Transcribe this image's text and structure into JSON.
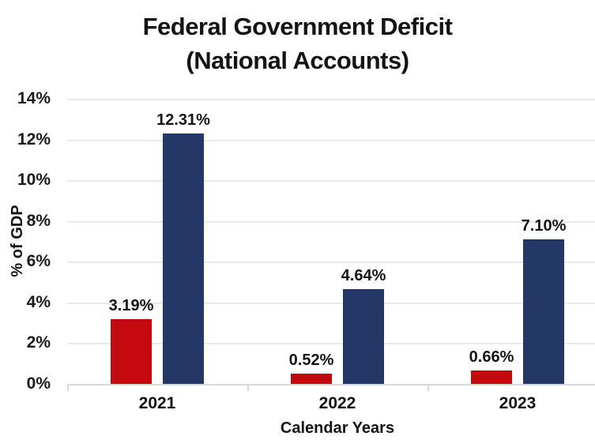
{
  "title": {
    "line1": "Federal Government Deficit",
    "line2": "(National Accounts)"
  },
  "chart_data": {
    "type": "bar",
    "title": "Federal Government Deficit (National Accounts)",
    "xlabel": "Calendar Years",
    "ylabel": "% of GDP",
    "categories": [
      "2021",
      "2022",
      "2023"
    ],
    "series": [
      {
        "name": "red-series",
        "color": "#c40a0e",
        "values": [
          3.19,
          0.52,
          0.66
        ],
        "labels": [
          "3.19%",
          "0.52%",
          "0.66%"
        ]
      },
      {
        "name": "navy-series",
        "color": "#243868",
        "values": [
          12.31,
          4.64,
          7.1
        ],
        "labels": [
          "12.31%",
          "4.64%",
          "7.10%"
        ]
      }
    ],
    "ylim": [
      0,
      14
    ],
    "ytick_step": 2,
    "ytick_labels": [
      "0%",
      "2%",
      "4%",
      "6%",
      "8%",
      "10%",
      "12%",
      "14%"
    ],
    "grid": true,
    "legend_position": "none"
  },
  "colors": {
    "red_bar": "#c40a0e",
    "navy_bar": "#243868",
    "gridline": "#e9e9e9",
    "axis_line": "#d8d8d8",
    "text": "#141414",
    "background": "#ffffff"
  }
}
